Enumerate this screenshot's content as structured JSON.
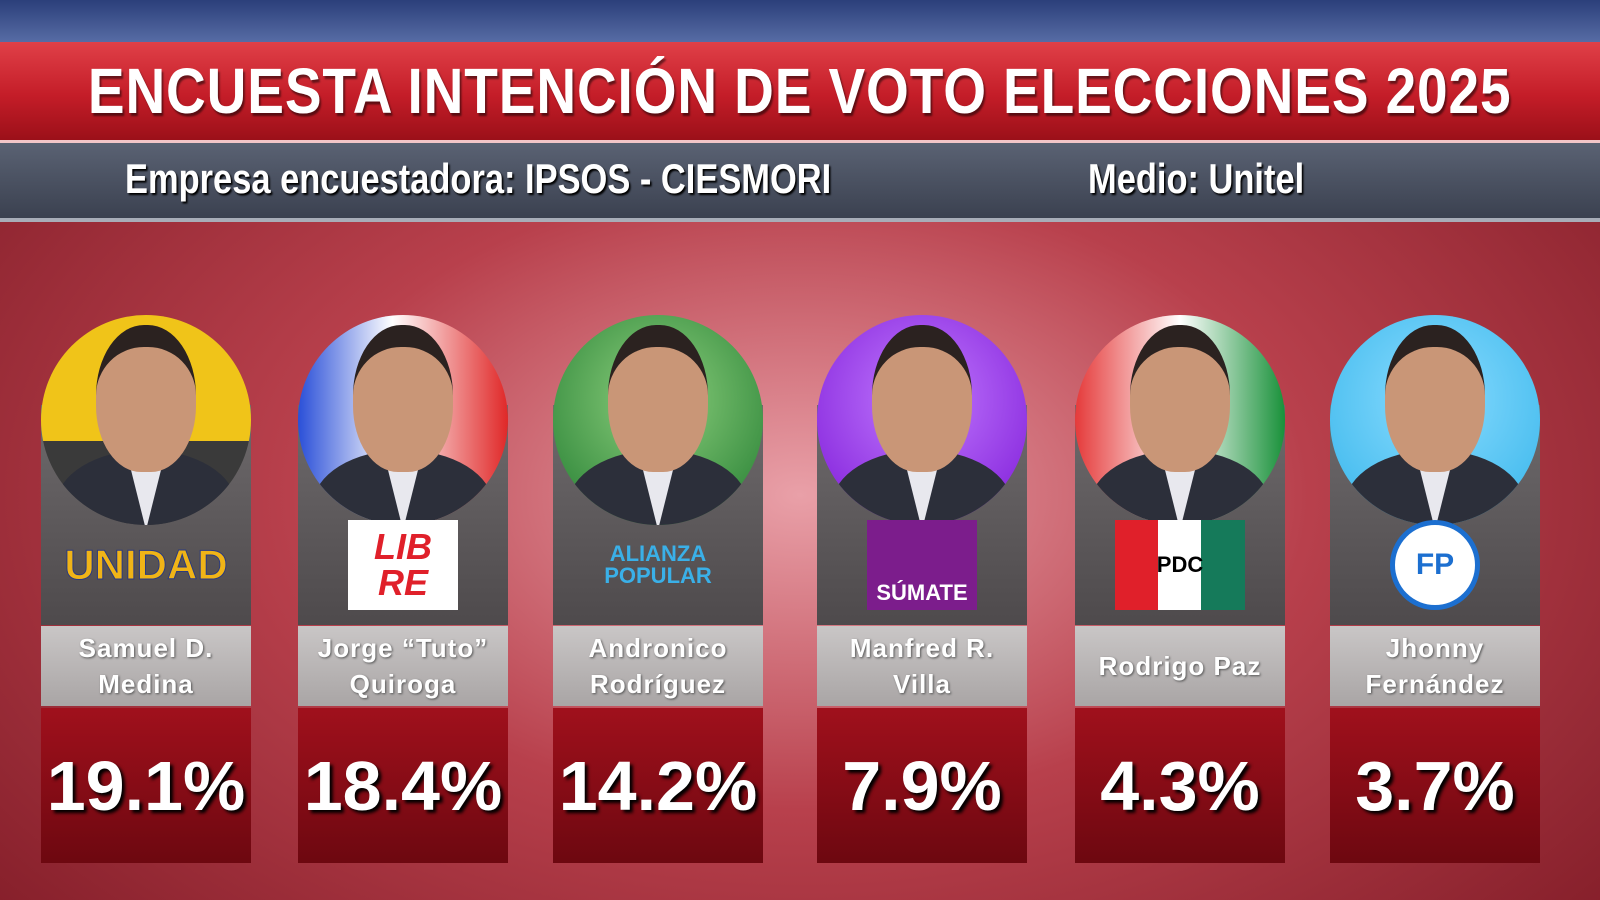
{
  "header": {
    "title": "ENCUESTA INTENCIÓN DE VOTO ELECCIONES 2025",
    "pollster": "Empresa encuestadora: IPSOS - CIESMORI",
    "media": "Medio: Unitel"
  },
  "candidates": [
    {
      "logo": "UNIDAD",
      "name": "Samuel D.\nMedina",
      "percent": "19.1%"
    },
    {
      "logo": "LIB\nRE",
      "name": "Jorge “Tuto”\nQuiroga",
      "percent": "18.4%"
    },
    {
      "logo": "ALIANZA\nPOPULAR",
      "name": "Andronico\nRodríguez",
      "percent": "14.2%"
    },
    {
      "logo": "SÚMATE",
      "name": "Manfred R.\nVilla",
      "percent": "7.9%"
    },
    {
      "logo": "PDC",
      "name": "Rodrigo Paz",
      "percent": "4.3%"
    },
    {
      "logo": "FP",
      "name": "Jhonny\nFernández",
      "percent": "3.7%"
    }
  ]
}
